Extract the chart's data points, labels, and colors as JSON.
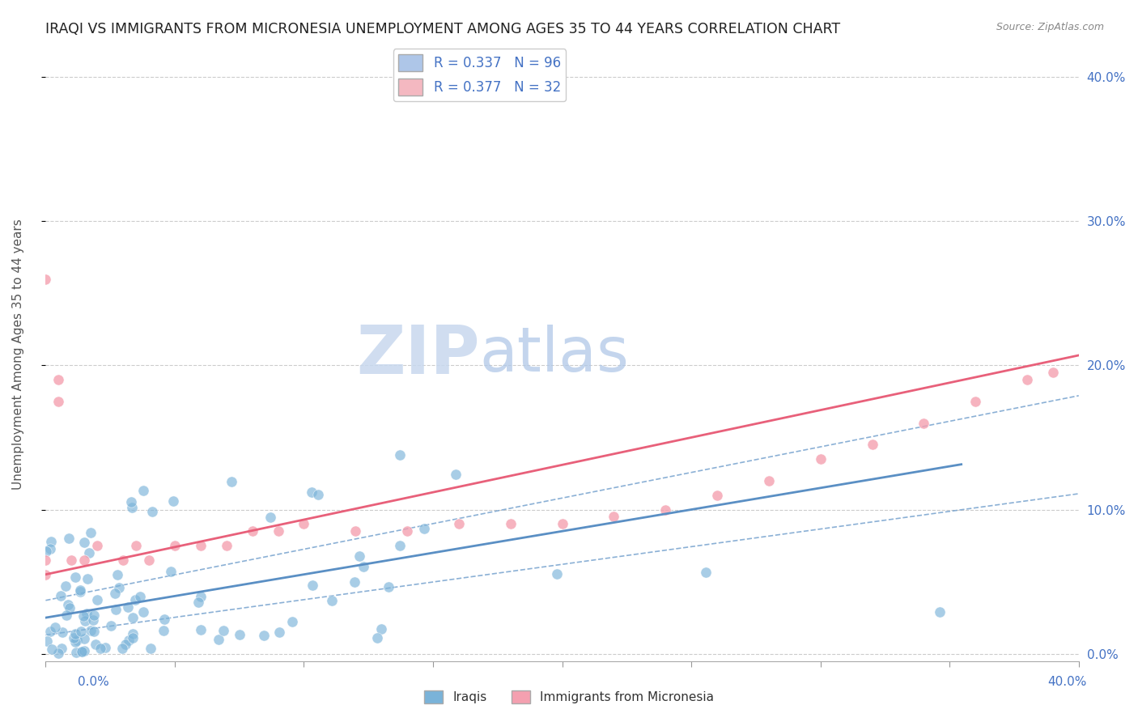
{
  "title": "IRAQI VS IMMIGRANTS FROM MICRONESIA UNEMPLOYMENT AMONG AGES 35 TO 44 YEARS CORRELATION CHART",
  "source": "Source: ZipAtlas.com",
  "ylabel": "Unemployment Among Ages 35 to 44 years",
  "ytick_values": [
    0.0,
    0.1,
    0.2,
    0.3,
    0.4
  ],
  "ytick_labels": [
    "0.0%",
    "10.0%",
    "20.0%",
    "30.0%",
    "40.0%"
  ],
  "xlim": [
    0.0,
    0.4
  ],
  "ylim": [
    -0.005,
    0.42
  ],
  "legend_entries": [
    {
      "label": "R = 0.337   N = 96",
      "color": "#aec6e8"
    },
    {
      "label": "R = 0.377   N = 32",
      "color": "#f4b8c1"
    }
  ],
  "blue_dot_color": "#7ab3d9",
  "pink_dot_color": "#f4a0b0",
  "blue_line_color": "#5a8fc4",
  "pink_line_color": "#e8607a",
  "watermark_zip_color": "#c8d8ee",
  "watermark_atlas_color": "#b0c8e8",
  "grid_color": "#cccccc",
  "title_fontsize": 12.5,
  "axis_fontsize": 11,
  "legend_fontsize": 12,
  "source_fontsize": 9,
  "iraqis_slope": 0.3,
  "iraqis_intercept": 0.025,
  "micro_slope": 0.38,
  "micro_intercept": 0.055
}
